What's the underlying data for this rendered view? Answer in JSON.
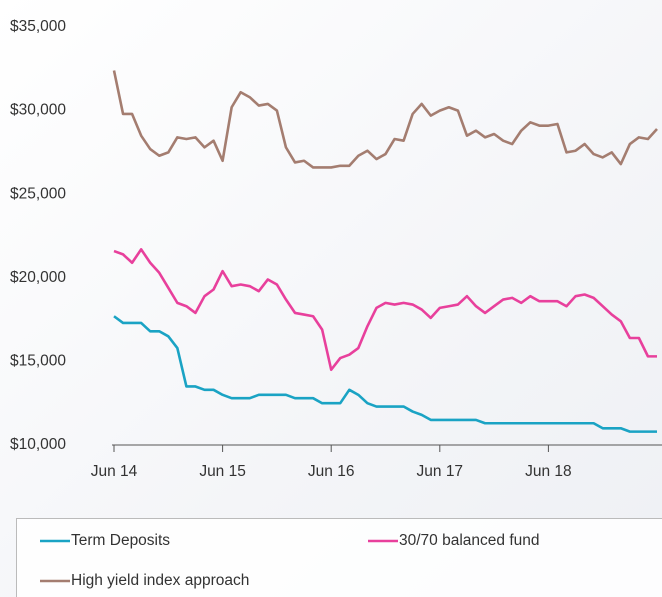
{
  "chart_data": {
    "type": "line",
    "categories": [
      "Jun 14",
      null,
      null,
      null,
      null,
      null,
      null,
      null,
      null,
      null,
      null,
      null,
      "Jun 15",
      null,
      null,
      null,
      null,
      null,
      null,
      null,
      null,
      null,
      null,
      null,
      "Jun 16",
      null,
      null,
      null,
      null,
      null,
      null,
      null,
      null,
      null,
      null,
      null,
      "Jun 17",
      null,
      null,
      null,
      null,
      null,
      null,
      null,
      null,
      null,
      null,
      null,
      "Jun 18",
      null,
      null,
      null,
      null,
      null,
      null,
      null,
      null,
      null,
      null,
      null,
      null
    ],
    "series": [
      {
        "name": "Term Deposits",
        "color": "#1aa3c4",
        "values": [
          17700,
          17300,
          17300,
          17300,
          16800,
          16800,
          16500,
          15800,
          13500,
          13500,
          13300,
          13300,
          13000,
          12800,
          12800,
          12800,
          13000,
          13000,
          13000,
          13000,
          12800,
          12800,
          12800,
          12500,
          12500,
          12500,
          13300,
          13000,
          12500,
          12300,
          12300,
          12300,
          12300,
          12000,
          11800,
          11500,
          11500,
          11500,
          11500,
          11500,
          11500,
          11300,
          11300,
          11300,
          11300,
          11300,
          11300,
          11300,
          11300,
          11300,
          11300,
          11300,
          11300,
          11300,
          11000,
          11000,
          11000,
          10800,
          10800,
          10800,
          10800
        ]
      },
      {
        "name": "30/70 balanced fund",
        "color": "#e8409c",
        "values": [
          21600,
          21400,
          20900,
          21700,
          20900,
          20300,
          19400,
          18500,
          18300,
          17900,
          18900,
          19300,
          20400,
          19500,
          19600,
          19500,
          19200,
          19900,
          19600,
          18700,
          17900,
          17800,
          17700,
          16900,
          14500,
          15200,
          15400,
          15800,
          17100,
          18200,
          18500,
          18400,
          18500,
          18400,
          18100,
          17600,
          18200,
          18300,
          18400,
          18900,
          18300,
          17900,
          18300,
          18700,
          18800,
          18500,
          18900,
          18600,
          18600,
          18600,
          18300,
          18900,
          19000,
          18800,
          18300,
          17800,
          17400,
          16400,
          16400,
          15300,
          15300
        ]
      },
      {
        "name": "High yield index approach",
        "color": "#a47d70",
        "values": [
          32400,
          29800,
          29800,
          28500,
          27700,
          27300,
          27500,
          28400,
          28300,
          28400,
          27800,
          28200,
          27000,
          30200,
          31100,
          30800,
          30300,
          30400,
          30000,
          27800,
          26900,
          27000,
          26600,
          26600,
          26600,
          26700,
          26700,
          27300,
          27600,
          27100,
          27400,
          28300,
          28200,
          29800,
          30400,
          29700,
          30000,
          30200,
          30000,
          28500,
          28800,
          28400,
          28600,
          28200,
          28000,
          28800,
          29300,
          29100,
          29100,
          29200,
          27500,
          27600,
          28000,
          27400,
          27200,
          27500,
          26800,
          28000,
          28400,
          28300,
          28900
        ]
      }
    ],
    "ylim": [
      10000,
      35000
    ],
    "yticks": [
      {
        "value": 10000,
        "label": "$10,000"
      },
      {
        "value": 15000,
        "label": "$15,000"
      },
      {
        "value": 20000,
        "label": "$20,000"
      },
      {
        "value": 25000,
        "label": "$25,000"
      },
      {
        "value": 30000,
        "label": "$30,000"
      },
      {
        "value": 35000,
        "label": "$35,000"
      }
    ],
    "grid": false,
    "legend": "bottom"
  }
}
